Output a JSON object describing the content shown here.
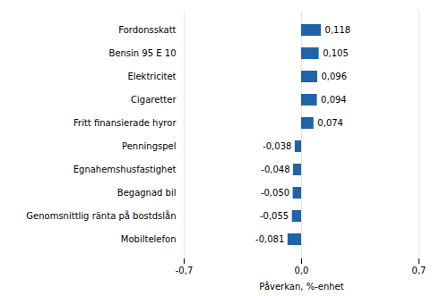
{
  "chart_data": {
    "type": "bar",
    "orientation": "horizontal",
    "categories": [
      "Mobiltelefon",
      "Genomsnittlig ränta på bostdslån",
      "Begagnad bil",
      "Egnahemshusfastighet",
      "Penningspel",
      "Fritt finansierade hyror",
      "Cigaretter",
      "Elektricitet",
      "Bensin 95 E 10",
      "Fordonsskatt"
    ],
    "values": [
      -0.081,
      -0.055,
      -0.05,
      -0.048,
      -0.038,
      0.074,
      0.094,
      0.096,
      0.105,
      0.118
    ],
    "value_labels": [
      "-0,081",
      "-0,055",
      "-0,050",
      "-0,048",
      "-0,038",
      "0,074",
      "0,094",
      "0,096",
      "0,105",
      "0,118"
    ],
    "data_labels": true,
    "color": "#2163a8",
    "xlabel": "Påverkan, %-enhet",
    "xlim": [
      -0.7,
      0.7
    ],
    "xticks": [
      {
        "value": -0.7,
        "label": "-0,7"
      },
      {
        "value": 0.0,
        "label": "0,0"
      },
      {
        "value": 0.7,
        "label": "0,7"
      }
    ],
    "grid": true
  }
}
